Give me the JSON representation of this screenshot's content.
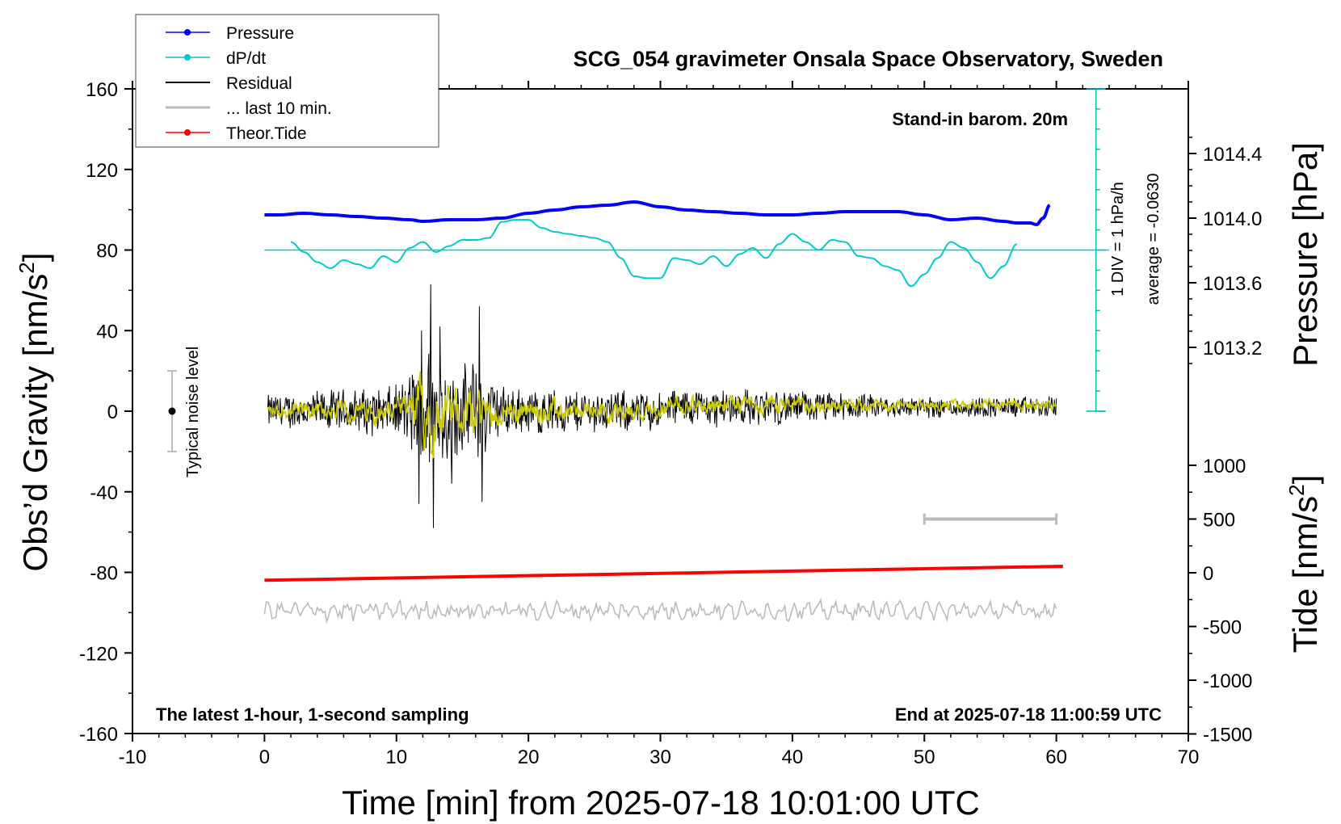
{
  "chart_data": {
    "type": "line",
    "title": "SCG_054 gravimeter Onsala Space Observatory, Sweden",
    "xlabel": "Time [min] from 2025-07-18 10:01:00 UTC",
    "ylabel_left_text": "Obs’d Gravity [nm/s",
    "ylabel_left_sup": "2",
    "ylabel_left_end": "]",
    "ylabel_right_pressure": "Pressure [hPa]",
    "ylabel_right_tide_text": "Tide [nm/s",
    "ylabel_right_tide_sup": "2",
    "ylabel_right_tide_end": "]",
    "xlim": [
      -10,
      70
    ],
    "ylim": [
      -160,
      160
    ],
    "x_ticks": [
      "-10",
      "0",
      "10",
      "20",
      "30",
      "40",
      "50",
      "60",
      "70"
    ],
    "y_ticks": [
      "160",
      "120",
      "80",
      "40",
      "0",
      "-40",
      "-80",
      "-120",
      "-160"
    ],
    "pressure_ticks": [
      "1014.4",
      "1014.0",
      "1013.6",
      "1013.2"
    ],
    "tide_ticks": [
      "1000",
      "500",
      "0",
      "-500",
      "-1000",
      "-1500"
    ],
    "annotations": {
      "barometer": "Stand-in barom. 20m",
      "div_note": "1 DIV = 1 hPa/h",
      "average_note": "average = -0.0630",
      "noise_label": "Typical noise level",
      "bottom_left": "The latest 1-hour, 1-second sampling",
      "bottom_right": "End at 2025-07-18 11:00:59 UTC"
    },
    "legend": [
      {
        "label": "Pressure",
        "color": "#0000ff",
        "marker": true
      },
      {
        "label": "dP/dt",
        "color": "#00cccc",
        "marker": true
      },
      {
        "label": "Residual",
        "color": "#000000",
        "marker": false
      },
      {
        "label": "... last 10 min.",
        "color": "#bbbbbb",
        "marker": false
      },
      {
        "label": "Theor.Tide",
        "color": "#ff0000",
        "marker": true
      }
    ],
    "series": [
      {
        "name": "Pressure",
        "color": "#0000ff",
        "unit": "hPa",
        "x": [
          0,
          1,
          3,
          5,
          7,
          9,
          11,
          12,
          14,
          16,
          18,
          20,
          22,
          24,
          26,
          28,
          30,
          32,
          34,
          36,
          38,
          40,
          42,
          44,
          46,
          48,
          50,
          52,
          54,
          56,
          57,
          58,
          58.5,
          59,
          59.5
        ],
        "values": [
          1014.02,
          1014.02,
          1014.03,
          1014.02,
          1014.01,
          1014.0,
          1013.99,
          1013.98,
          1013.99,
          1013.99,
          1014.0,
          1014.03,
          1014.05,
          1014.07,
          1014.08,
          1014.1,
          1014.07,
          1014.05,
          1014.04,
          1014.03,
          1014.02,
          1014.02,
          1014.03,
          1014.04,
          1014.04,
          1014.04,
          1014.02,
          1013.99,
          1014.0,
          1013.98,
          1013.97,
          1013.97,
          1013.96,
          1014.0,
          1014.08
        ]
      },
      {
        "name": "dP/dt",
        "color": "#00cccc",
        "unit": "nm/s2 scale",
        "x": [
          2,
          3,
          4,
          5,
          6,
          7,
          8,
          9,
          10,
          11,
          12,
          13,
          14,
          15,
          16,
          17,
          18,
          19,
          20,
          21,
          22,
          23,
          24,
          25,
          26,
          27,
          28,
          29,
          30,
          31,
          32,
          33,
          34,
          35,
          36,
          37,
          38,
          39,
          40,
          41,
          42,
          43,
          44,
          45,
          46,
          47,
          48,
          49,
          50,
          51,
          52,
          53,
          54,
          55,
          56,
          57
        ],
        "values": [
          84,
          79,
          74,
          71,
          75,
          73,
          71,
          77,
          74,
          81,
          84,
          79,
          82,
          85,
          85,
          86,
          94,
          95,
          95,
          91,
          89,
          88,
          87,
          86,
          84,
          76,
          67,
          66,
          66,
          76,
          75,
          73,
          77,
          72,
          78,
          81,
          76,
          83,
          88,
          84,
          80,
          85,
          84,
          77,
          76,
          72,
          70,
          62,
          68,
          76,
          84,
          81,
          74,
          66,
          72,
          83
        ]
      },
      {
        "name": "Residual",
        "color": "#000000",
        "envelope_x": [
          0,
          5,
          10,
          11,
          12,
          13,
          14,
          15,
          16,
          17,
          18,
          20,
          25,
          30,
          35,
          40,
          45,
          50,
          55,
          60
        ],
        "envelope_amplitude": [
          8,
          10,
          12,
          18,
          40,
          30,
          25,
          20,
          28,
          18,
          12,
          11,
          10,
          9,
          9,
          8,
          6,
          5,
          5,
          5
        ]
      },
      {
        "name": "... last 10 min.",
        "color": "#bbbbbb",
        "marker_range_min": [
          50,
          60
        ]
      },
      {
        "name": "Theor.Tide",
        "color": "#ff0000",
        "unit": "nm/s2",
        "x": [
          0,
          60.5
        ],
        "values": [
          -70,
          60
        ]
      }
    ],
    "overlay_color": "#cccc00",
    "noise_level": {
      "x": -7,
      "center": 0,
      "low": -20,
      "high": 20
    },
    "dpdt_baseline": 80,
    "dpdt_scale_top": 160,
    "dpdt_scale_bottom": 0,
    "dpdt_scale_x": 63
  }
}
